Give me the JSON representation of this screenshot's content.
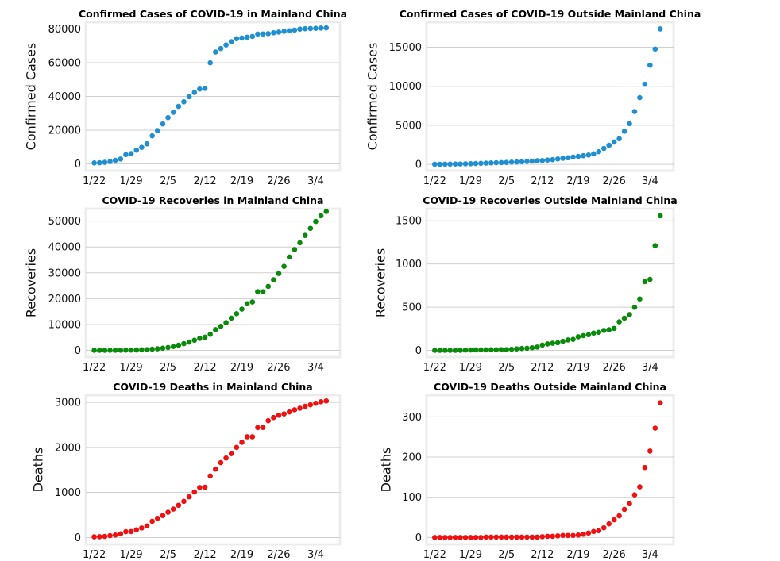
{
  "chart_data": [
    {
      "type": "scatter",
      "title": "Confirmed Cases of COVID-19 in Mainland China",
      "xlabel": "",
      "ylabel": "Confirmed Cases",
      "color": "#1f8fd0",
      "x_ticks": [
        "1/22",
        "1/29",
        "2/5",
        "2/12",
        "2/19",
        "2/26",
        "3/4"
      ],
      "xlim": [
        -1.6,
        46.6
      ],
      "ylim": [
        -4000,
        84000
      ],
      "y_ticks": [
        0,
        20000,
        40000,
        60000,
        80000
      ],
      "grid": true,
      "values": [
        548,
        643,
        920,
        1406,
        2075,
        2877,
        5509,
        6087,
        8141,
        9802,
        11891,
        16630,
        19716,
        23707,
        27440,
        30587,
        34110,
        36814,
        39829,
        42354,
        44386,
        44759,
        59895,
        66358,
        68413,
        70513,
        72434,
        74211,
        74619,
        75077,
        75550,
        77001,
        77022,
        77241,
        77754,
        78166,
        78600,
        78928,
        79356,
        79932,
        80136,
        80261,
        80386,
        80537,
        80690
      ]
    },
    {
      "type": "scatter",
      "title": "Confirmed Cases of COVID-19 Outside Mainland China",
      "xlabel": "",
      "ylabel": "Confirmed Cases",
      "color": "#1f8fd0",
      "x_ticks": [
        "1/22",
        "1/29",
        "2/5",
        "2/12",
        "2/19",
        "2/26",
        "3/4"
      ],
      "xlim": [
        -1.6,
        46.6
      ],
      "ylim": [
        -800,
        18200
      ],
      "y_ticks": [
        0,
        5000,
        10000,
        15000
      ],
      "grid": true,
      "values": [
        7,
        11,
        21,
        28,
        43,
        50,
        74,
        85,
        112,
        130,
        161,
        182,
        209,
        222,
        252,
        282,
        305,
        343,
        378,
        418,
        469,
        491,
        557,
        608,
        693,
        775,
        847,
        941,
        1022,
        1111,
        1198,
        1355,
        1627,
        2046,
        2440,
        2860,
        3281,
        4233,
        5212,
        6766,
        8538,
        10259,
        12701,
        14768,
        17347
      ]
    },
    {
      "type": "scatter",
      "title": "COVID-19 Recoveries in Mainland China",
      "xlabel": "",
      "ylabel": "Recoveries",
      "color": "#0a8a0a",
      "x_ticks": [
        "1/22",
        "1/29",
        "2/5",
        "2/12",
        "2/19",
        "2/26",
        "3/4"
      ],
      "xlim": [
        -1.6,
        46.6
      ],
      "ylim": [
        -2600,
        54800
      ],
      "y_ticks": [
        0,
        10000,
        20000,
        30000,
        40000,
        50000
      ],
      "grid": true,
      "values": [
        28,
        30,
        36,
        39,
        49,
        58,
        101,
        120,
        135,
        214,
        275,
        463,
        614,
        843,
        1115,
        1476,
        1998,
        2595,
        3218,
        3917,
        4635,
        5079,
        6213,
        8001,
        9294,
        10748,
        12455,
        14199,
        15952,
        18014,
        18704,
        22699,
        22688,
        24734,
        27323,
        29745,
        32495,
        36117,
        39002,
        41625,
        44462,
        47204,
        49856,
        52045,
        53726
      ]
    },
    {
      "type": "scatter",
      "title": "COVID-19 Recoveries Outside Mainland China",
      "xlabel": "",
      "ylabel": "Recoveries",
      "color": "#0a8a0a",
      "x_ticks": [
        "1/22",
        "1/29",
        "2/5",
        "2/12",
        "2/19",
        "2/26",
        "3/4"
      ],
      "xlim": [
        -1.6,
        46.6
      ],
      "ylim": [
        -78,
        1640
      ],
      "y_ticks": [
        0,
        500,
        1000,
        1500
      ],
      "grid": true,
      "values": [
        0,
        0,
        0,
        0,
        0,
        0,
        3,
        4,
        5,
        5,
        5,
        6,
        6,
        8,
        8,
        12,
        17,
        21,
        24,
        30,
        38,
        61,
        74,
        82,
        88,
        105,
        120,
        127,
        157,
        171,
        181,
        200,
        209,
        231,
        239,
        254,
        330,
        372,
        414,
        498,
        595,
        795,
        822,
        1212,
        1558
      ]
    },
    {
      "type": "scatter",
      "title": "COVID-19 Deaths in Mainland China",
      "xlabel": "",
      "ylabel": "Deaths",
      "color": "#ee1111",
      "x_ticks": [
        "1/22",
        "1/29",
        "2/5",
        "2/12",
        "2/19",
        "2/26",
        "3/4"
      ],
      "xlim": [
        -1.6,
        46.6
      ],
      "ylim": [
        -150,
        3160
      ],
      "y_ticks": [
        0,
        1000,
        2000,
        3000
      ],
      "grid": true,
      "values": [
        17,
        18,
        26,
        42,
        56,
        82,
        131,
        133,
        171,
        213,
        259,
        361,
        425,
        490,
        562,
        632,
        717,
        804,
        904,
        1011,
        1111,
        1116,
        1368,
        1520,
        1662,
        1765,
        1863,
        2002,
        2114,
        2236,
        2236,
        2441,
        2443,
        2593,
        2663,
        2715,
        2744,
        2788,
        2835,
        2870,
        2912,
        2945,
        2981,
        3013,
        3032
      ]
    },
    {
      "type": "scatter",
      "title": "COVID-19 Deaths Outside Mainland China",
      "xlabel": "",
      "ylabel": "Deaths",
      "color": "#ee1111",
      "x_ticks": [
        "1/22",
        "1/29",
        "2/5",
        "2/12",
        "2/19",
        "2/26",
        "3/4"
      ],
      "xlim": [
        -1.6,
        46.6
      ],
      "ylim": [
        -17,
        354
      ],
      "y_ticks": [
        0,
        100,
        200,
        300
      ],
      "grid": true,
      "values": [
        0,
        0,
        0,
        0,
        0,
        0,
        0,
        0,
        0,
        0,
        1,
        1,
        1,
        1,
        1,
        1,
        1,
        1,
        1,
        1,
        1,
        2,
        3,
        3,
        4,
        5,
        5,
        5,
        6,
        8,
        11,
        15,
        17,
        24,
        34,
        44,
        54,
        70,
        84,
        106,
        126,
        174,
        215,
        272,
        335
      ]
    }
  ]
}
